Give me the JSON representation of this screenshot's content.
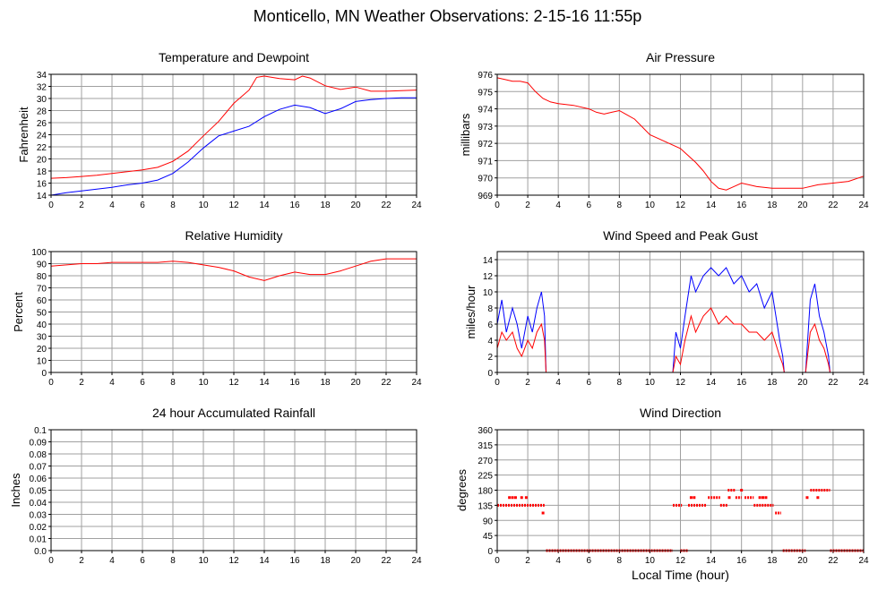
{
  "page": {
    "title": "Monticello, MN Weather Observations: 2-15-16 11:55p",
    "xlabel": "Local Time (hour)"
  },
  "colors": {
    "red": "#ff0000",
    "blue": "#0000ff",
    "grid": "#a0a0a0",
    "frame": "#000000"
  },
  "chart_data": [
    {
      "id": "temp",
      "type": "line",
      "title": "Temperature and Dewpoint",
      "ylabel": "Fahrenheit",
      "xlim": [
        0,
        24
      ],
      "ylim": [
        14,
        34
      ],
      "xticks": [
        0,
        2,
        4,
        6,
        8,
        10,
        12,
        14,
        16,
        18,
        20,
        22,
        24
      ],
      "yticks": [
        14,
        16,
        18,
        20,
        22,
        24,
        26,
        28,
        30,
        32,
        34
      ],
      "grid": true,
      "series": [
        {
          "color": "#ff0000",
          "x": [
            0,
            1,
            2,
            3,
            4,
            5,
            6,
            7,
            8,
            9,
            10,
            11,
            12,
            13,
            13.5,
            14,
            15,
            16,
            16.5,
            17,
            18,
            19,
            20,
            21,
            22,
            23,
            24
          ],
          "y": [
            16.8,
            16.9,
            17.1,
            17.3,
            17.6,
            17.9,
            18.2,
            18.6,
            19.6,
            21.3,
            23.8,
            26.2,
            29.2,
            31.4,
            33.5,
            33.7,
            33.3,
            33.1,
            33.7,
            33.4,
            32.1,
            31.5,
            31.9,
            31.2,
            31.2,
            31.3,
            31.4
          ]
        },
        {
          "color": "#0000ff",
          "x": [
            0,
            1,
            2,
            3,
            4,
            5,
            6,
            7,
            8,
            9,
            10,
            11,
            12,
            13,
            14,
            15,
            16,
            17,
            18,
            19,
            20,
            21,
            22,
            23,
            24
          ],
          "y": [
            14.0,
            14.4,
            14.7,
            15.0,
            15.3,
            15.7,
            16.0,
            16.5,
            17.6,
            19.5,
            21.8,
            23.8,
            24.6,
            25.4,
            27.0,
            28.2,
            28.9,
            28.5,
            27.5,
            28.3,
            29.5,
            29.8,
            30.0,
            30.1,
            30.1
          ]
        }
      ]
    },
    {
      "id": "pressure",
      "type": "line",
      "title": "Air Pressure",
      "ylabel": "millibars",
      "xlim": [
        0,
        24
      ],
      "ylim": [
        969,
        976
      ],
      "xticks": [
        0,
        2,
        4,
        6,
        8,
        10,
        12,
        14,
        16,
        18,
        20,
        22,
        24
      ],
      "yticks": [
        969,
        970,
        971,
        972,
        973,
        974,
        975,
        976
      ],
      "grid": true,
      "series": [
        {
          "color": "#ff0000",
          "x": [
            0,
            0.5,
            1,
            1.5,
            2,
            2.5,
            3,
            3.5,
            4,
            5,
            6,
            6.5,
            7,
            7.5,
            8,
            9,
            10,
            11,
            12,
            13,
            13.5,
            14,
            14.5,
            15,
            15.5,
            16,
            17,
            18,
            19,
            20,
            21,
            22,
            23,
            24
          ],
          "y": [
            975.8,
            975.7,
            975.6,
            975.6,
            975.5,
            975.0,
            974.6,
            974.4,
            974.3,
            974.2,
            974.0,
            973.8,
            973.7,
            973.8,
            973.9,
            973.4,
            972.5,
            972.1,
            971.7,
            970.9,
            970.4,
            969.8,
            969.4,
            969.3,
            969.5,
            969.7,
            969.5,
            969.4,
            969.4,
            969.4,
            969.6,
            969.7,
            969.8,
            970.1
          ]
        }
      ]
    },
    {
      "id": "humidity",
      "type": "line",
      "title": "Relative Humidity",
      "ylabel": "Percent",
      "xlim": [
        0,
        24
      ],
      "ylim": [
        0,
        100
      ],
      "xticks": [
        0,
        2,
        4,
        6,
        8,
        10,
        12,
        14,
        16,
        18,
        20,
        22,
        24
      ],
      "yticks": [
        0,
        10,
        20,
        30,
        40,
        50,
        60,
        70,
        80,
        90,
        100
      ],
      "grid": true,
      "series": [
        {
          "color": "#ff0000",
          "x": [
            0,
            1,
            2,
            3,
            4,
            5,
            6,
            7,
            8,
            9,
            10,
            11,
            12,
            13,
            14,
            15,
            16,
            17,
            18,
            19,
            20,
            21,
            22,
            23,
            24
          ],
          "y": [
            88,
            89,
            90,
            90,
            91,
            91,
            91,
            91,
            92,
            91,
            89,
            87,
            84,
            79,
            76,
            80,
            83,
            81,
            81,
            84,
            88,
            92,
            94,
            94,
            94
          ]
        }
      ]
    },
    {
      "id": "wind",
      "type": "line",
      "title": "Wind Speed and Peak Gust",
      "ylabel": "miles/hour",
      "xlim": [
        0,
        24
      ],
      "ylim": [
        0,
        15
      ],
      "xticks": [
        0,
        2,
        4,
        6,
        8,
        10,
        12,
        14,
        16,
        18,
        20,
        22,
        24
      ],
      "yticks": [
        0,
        2,
        4,
        6,
        8,
        10,
        12,
        14
      ],
      "grid": true,
      "series": [
        {
          "color": "#0000ff",
          "x": [
            0,
            0.3,
            0.6,
            1,
            1.3,
            1.6,
            2,
            2.3,
            2.6,
            2.9,
            3.1,
            3.2,
            11.5,
            11.7,
            12,
            12.3,
            12.7,
            13,
            13.5,
            14,
            14.5,
            15,
            15.5,
            16,
            16.5,
            17,
            17.5,
            18,
            18.5,
            18.7,
            18.8,
            20.2,
            20.5,
            20.8,
            21.1,
            21.4,
            21.7,
            21.8,
            24
          ],
          "y": [
            6,
            9,
            5,
            8,
            6,
            3,
            7,
            5,
            8,
            10,
            7,
            0,
            0,
            5,
            3,
            7,
            12,
            10,
            12,
            13,
            12,
            13,
            11,
            12,
            10,
            11,
            8,
            10,
            4,
            2,
            0,
            0,
            9,
            11,
            7,
            5,
            2,
            0,
            0
          ]
        },
        {
          "color": "#ff0000",
          "x": [
            0,
            0.3,
            0.6,
            1,
            1.3,
            1.6,
            2,
            2.3,
            2.6,
            2.9,
            3.1,
            3.2,
            11.5,
            11.7,
            12,
            12.3,
            12.7,
            13,
            13.5,
            14,
            14.5,
            15,
            15.5,
            16,
            16.5,
            17,
            17.5,
            18,
            18.5,
            18.7,
            18.8,
            20.2,
            20.5,
            20.8,
            21.1,
            21.4,
            21.7,
            21.8,
            24
          ],
          "y": [
            3,
            5,
            4,
            5,
            3,
            2,
            4,
            3,
            5,
            6,
            4,
            0,
            0,
            2,
            1,
            4,
            7,
            5,
            7,
            8,
            6,
            7,
            6,
            6,
            5,
            5,
            4,
            5,
            2,
            1,
            0,
            0,
            5,
            6,
            4,
            3,
            1,
            0,
            0
          ]
        }
      ]
    },
    {
      "id": "rain",
      "type": "line",
      "title": "24 hour Accumulated Rainfall",
      "ylabel": "Inches",
      "xlim": [
        0,
        24
      ],
      "ylim": [
        0,
        0.1
      ],
      "xticks": [
        0,
        2,
        4,
        6,
        8,
        10,
        12,
        14,
        16,
        18,
        20,
        22,
        24
      ],
      "yticks": [
        0.0,
        0.01,
        0.02,
        0.03,
        0.04,
        0.05,
        0.06,
        0.07,
        0.08,
        0.09,
        0.1
      ],
      "ytick_labels": [
        "0.0",
        "0.01",
        "0.02",
        "0.03",
        "0.04",
        "0.05",
        "0.06",
        "0.07",
        "0.08",
        "0.09",
        "0.1"
      ],
      "grid": true,
      "series": [
        {
          "color": "#ff0000",
          "x": [
            0,
            24
          ],
          "y": [
            0,
            0
          ]
        }
      ]
    },
    {
      "id": "direction",
      "type": "scatter",
      "title": "Wind Direction",
      "ylabel": "degrees",
      "xlim": [
        0,
        24
      ],
      "ylim": [
        0,
        360
      ],
      "xticks": [
        0,
        2,
        4,
        6,
        8,
        10,
        12,
        14,
        16,
        18,
        20,
        22,
        24
      ],
      "yticks": [
        0,
        45,
        90,
        135,
        180,
        225,
        270,
        315,
        360
      ],
      "grid": true,
      "series": [
        {
          "color": "#ff0000",
          "segments": [
            {
              "x0": 0,
              "x1": 3.1,
              "y": 135
            },
            {
              "x0": 3.2,
              "x1": 11.5,
              "y": 0
            },
            {
              "x0": 11.5,
              "x1": 12.1,
              "y": 135
            },
            {
              "x0": 12.5,
              "x1": 13.7,
              "y": 135
            },
            {
              "x0": 13.8,
              "x1": 14.6,
              "y": 158
            },
            {
              "x0": 14.6,
              "x1": 15.1,
              "y": 135
            },
            {
              "x0": 15.1,
              "x1": 15.6,
              "y": 180
            },
            {
              "x0": 15.6,
              "x1": 16.0,
              "y": 158
            },
            {
              "x0": 16.2,
              "x1": 16.8,
              "y": 158
            },
            {
              "x0": 16.8,
              "x1": 18.1,
              "y": 135
            },
            {
              "x0": 18.2,
              "x1": 18.6,
              "y": 112
            },
            {
              "x0": 18.7,
              "x1": 20.2,
              "y": 0
            },
            {
              "x0": 20.5,
              "x1": 21.8,
              "y": 180
            },
            {
              "x0": 21.8,
              "x1": 24.0,
              "y": 0
            },
            {
              "x0": 12.0,
              "x1": 12.5,
              "y": 0
            }
          ],
          "points": [
            {
              "x": 0.8,
              "y": 158
            },
            {
              "x": 1.0,
              "y": 158
            },
            {
              "x": 1.2,
              "y": 158
            },
            {
              "x": 1.6,
              "y": 158
            },
            {
              "x": 1.9,
              "y": 158
            },
            {
              "x": 3.0,
              "y": 112
            },
            {
              "x": 12.7,
              "y": 158
            },
            {
              "x": 12.9,
              "y": 158
            },
            {
              "x": 15.2,
              "y": 158
            },
            {
              "x": 16.0,
              "y": 180
            },
            {
              "x": 17.2,
              "y": 158
            },
            {
              "x": 17.4,
              "y": 158
            },
            {
              "x": 17.6,
              "y": 158
            },
            {
              "x": 20.3,
              "y": 158
            },
            {
              "x": 21.0,
              "y": 158
            }
          ]
        }
      ]
    }
  ]
}
